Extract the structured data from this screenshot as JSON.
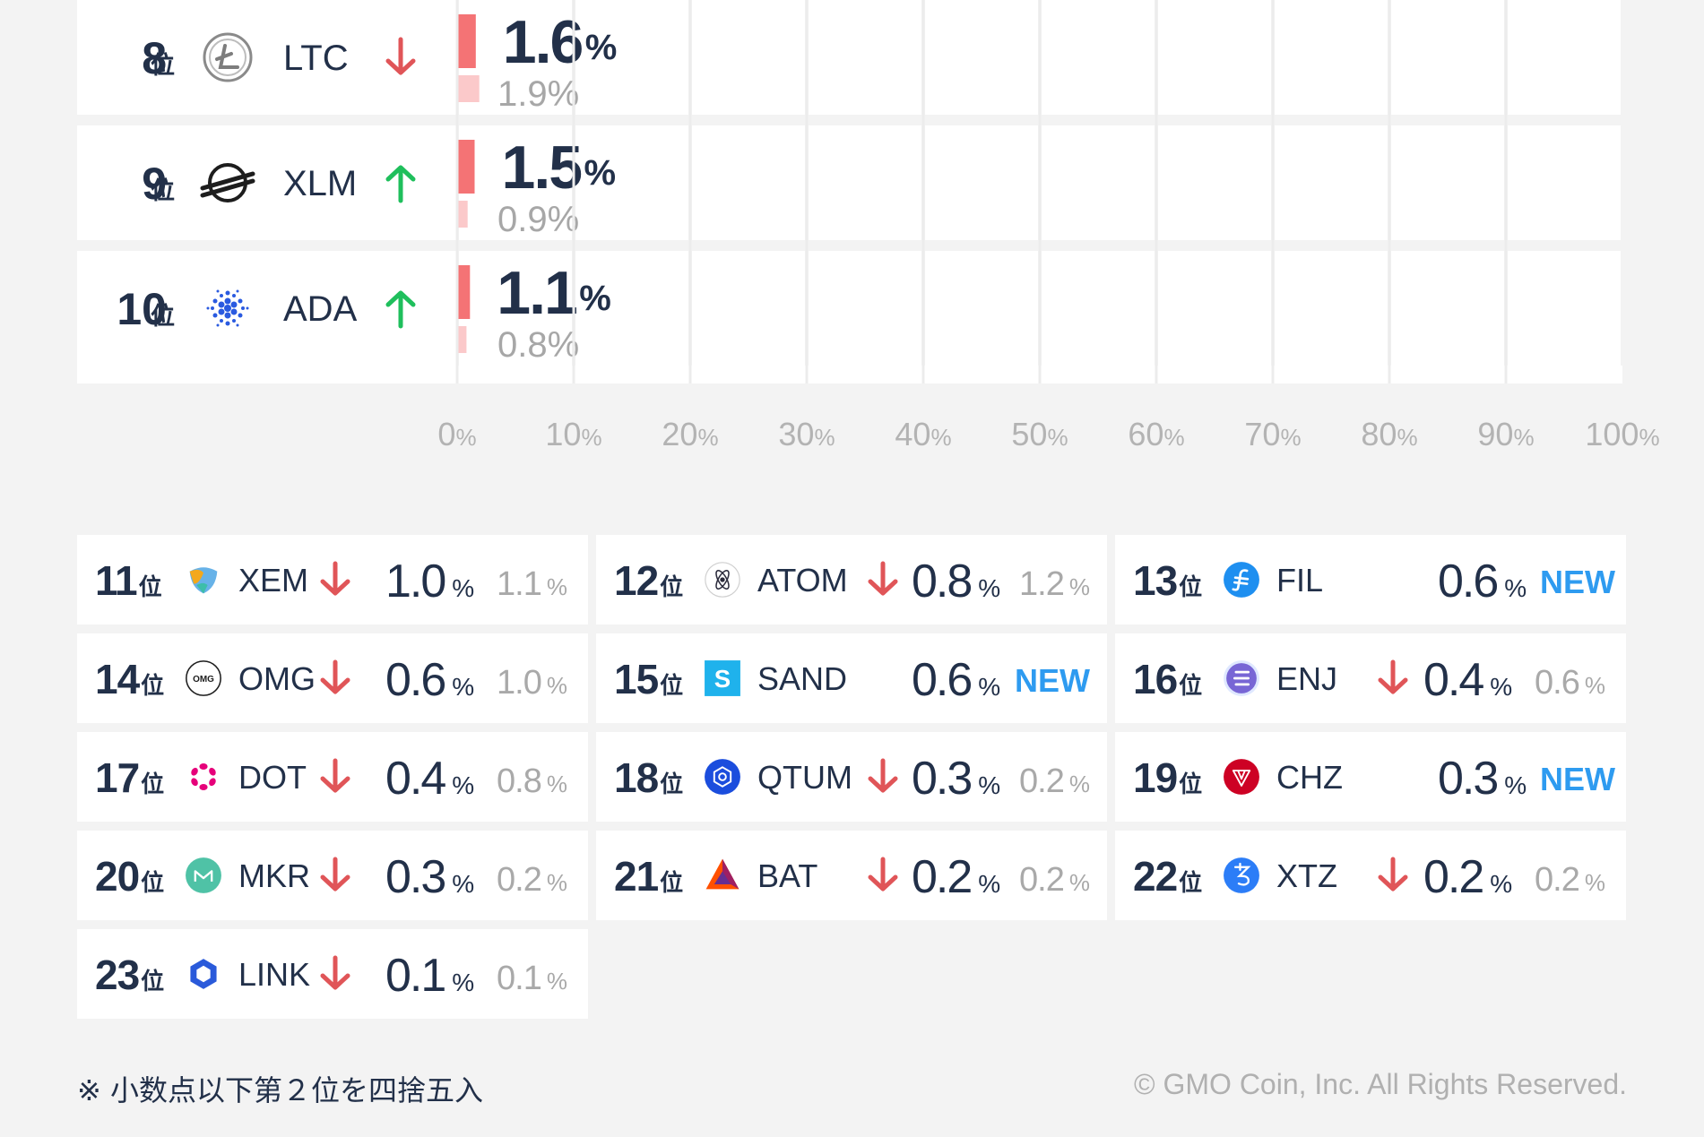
{
  "chart_data": {
    "type": "bar",
    "orientation": "horizontal",
    "x_ticks": [
      {
        "value": 0,
        "label": "0"
      },
      {
        "value": 10,
        "label": "10"
      },
      {
        "value": 20,
        "label": "20"
      },
      {
        "value": 30,
        "label": "30"
      },
      {
        "value": 40,
        "label": "40"
      },
      {
        "value": 50,
        "label": "50"
      },
      {
        "value": 60,
        "label": "60"
      },
      {
        "value": 70,
        "label": "70"
      },
      {
        "value": 80,
        "label": "80"
      },
      {
        "value": 90,
        "label": "90"
      },
      {
        "value": 100,
        "label": "100"
      }
    ],
    "tick_unit": "%",
    "xlim": [
      0,
      100
    ],
    "rows": [
      {
        "rank": "8",
        "suffix": "位",
        "symbol": "LTC",
        "trend": "down",
        "value": 1.6,
        "value_label": "1.6",
        "unit": "%",
        "prev": 1.9,
        "prev_label": "1.9%",
        "icon": "litecoin-icon"
      },
      {
        "rank": "9",
        "suffix": "位",
        "symbol": "XLM",
        "trend": "up",
        "value": 1.5,
        "value_label": "1.5",
        "unit": "%",
        "prev": 0.9,
        "prev_label": "0.9%",
        "icon": "stellar-icon"
      },
      {
        "rank": "10",
        "suffix": "位",
        "symbol": "ADA",
        "trend": "up",
        "value": 1.1,
        "value_label": "1.1",
        "unit": "%",
        "prev": 0.8,
        "prev_label": "0.8%",
        "icon": "cardano-icon"
      }
    ],
    "colors": {
      "current": "#f47375",
      "previous": "#fbc9ca",
      "up": "#1fbf5c",
      "down": "#e05558",
      "new": "#2e9bf0"
    }
  },
  "grid": [
    {
      "rank": "11",
      "suffix": "位",
      "symbol": "XEM",
      "trend": "down",
      "value": "1.0",
      "unit": "%",
      "prev": "1.1",
      "prev_unit": "%",
      "icon": "nem-icon"
    },
    {
      "rank": "12",
      "suffix": "位",
      "symbol": "ATOM",
      "trend": "down",
      "value": "0.8",
      "unit": "%",
      "prev": "1.2",
      "prev_unit": "%",
      "icon": "cosmos-icon"
    },
    {
      "rank": "13",
      "suffix": "位",
      "symbol": "FIL",
      "trend": "new",
      "value": "0.6",
      "unit": "%",
      "new_label": "NEW",
      "icon": "filecoin-icon"
    },
    {
      "rank": "14",
      "suffix": "位",
      "symbol": "OMG",
      "trend": "down",
      "value": "0.6",
      "unit": "%",
      "prev": "1.0",
      "prev_unit": "%",
      "icon": "omg-icon",
      "icon_text": "OMG"
    },
    {
      "rank": "15",
      "suffix": "位",
      "symbol": "SAND",
      "trend": "new",
      "value": "0.6",
      "unit": "%",
      "new_label": "NEW",
      "icon": "sandbox-icon",
      "icon_text": "S"
    },
    {
      "rank": "16",
      "suffix": "位",
      "symbol": "ENJ",
      "trend": "down",
      "value": "0.4",
      "unit": "%",
      "prev": "0.6",
      "prev_unit": "%",
      "icon": "enjin-icon"
    },
    {
      "rank": "17",
      "suffix": "位",
      "symbol": "DOT",
      "trend": "down",
      "value": "0.4",
      "unit": "%",
      "prev": "0.8",
      "prev_unit": "%",
      "icon": "polkadot-icon"
    },
    {
      "rank": "18",
      "suffix": "位",
      "symbol": "QTUM",
      "trend": "down",
      "value": "0.3",
      "unit": "%",
      "prev": "0.2",
      "prev_unit": "%",
      "icon": "qtum-icon"
    },
    {
      "rank": "19",
      "suffix": "位",
      "symbol": "CHZ",
      "trend": "new",
      "value": "0.3",
      "unit": "%",
      "new_label": "NEW",
      "icon": "chiliz-icon"
    },
    {
      "rank": "20",
      "suffix": "位",
      "symbol": "MKR",
      "trend": "down",
      "value": "0.3",
      "unit": "%",
      "prev": "0.2",
      "prev_unit": "%",
      "icon": "maker-icon"
    },
    {
      "rank": "21",
      "suffix": "位",
      "symbol": "BAT",
      "trend": "down",
      "value": "0.2",
      "unit": "%",
      "prev": "0.2",
      "prev_unit": "%",
      "icon": "bat-icon"
    },
    {
      "rank": "22",
      "suffix": "位",
      "symbol": "XTZ",
      "trend": "down",
      "value": "0.2",
      "unit": "%",
      "prev": "0.2",
      "prev_unit": "%",
      "icon": "tezos-icon"
    },
    {
      "rank": "23",
      "suffix": "位",
      "symbol": "LINK",
      "trend": "down",
      "value": "0.1",
      "unit": "%",
      "prev": "0.1",
      "prev_unit": "%",
      "icon": "chainlink-icon"
    }
  ],
  "footer": {
    "note": "※ 小数点以下第２位を四捨五入",
    "copyright": "© GMO Coin, Inc. All Rights Reserved."
  }
}
